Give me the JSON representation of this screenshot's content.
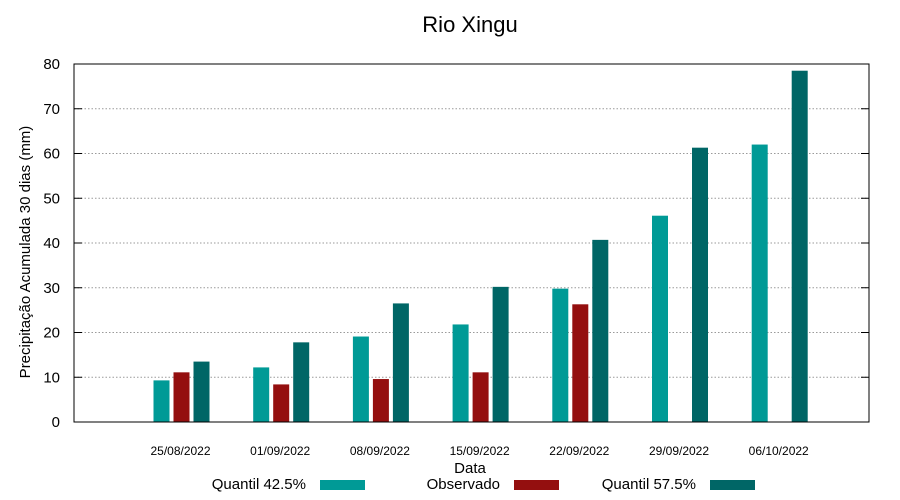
{
  "chart_data": {
    "type": "bar",
    "title": "Rio Xingu",
    "xlabel": "Data",
    "ylabel": "Precipitação Acumulada 30 dias (mm)",
    "ylim": [
      0,
      80
    ],
    "yticks": [
      "0",
      "10",
      "20",
      "30",
      "40",
      "50",
      "60",
      "70",
      "80"
    ],
    "grid": true,
    "legend_position": "bottom",
    "categories": [
      "25/08/2022",
      "01/09/2022",
      "08/09/2022",
      "15/09/2022",
      "22/09/2022",
      "29/09/2022",
      "06/10/2022"
    ],
    "series": [
      {
        "name": "Quantil 42.5%",
        "color": "#009a96",
        "values": [
          9.3,
          12.2,
          19.1,
          21.8,
          29.8,
          46.1,
          62.0
        ]
      },
      {
        "name": "Observado",
        "color": "#940f0f",
        "values": [
          11.1,
          8.4,
          9.6,
          11.1,
          26.3,
          null,
          null
        ]
      },
      {
        "name": "Quantil 57.5%",
        "color": "#006666",
        "values": [
          13.5,
          17.8,
          26.5,
          30.2,
          40.7,
          61.3,
          78.5
        ]
      }
    ]
  }
}
